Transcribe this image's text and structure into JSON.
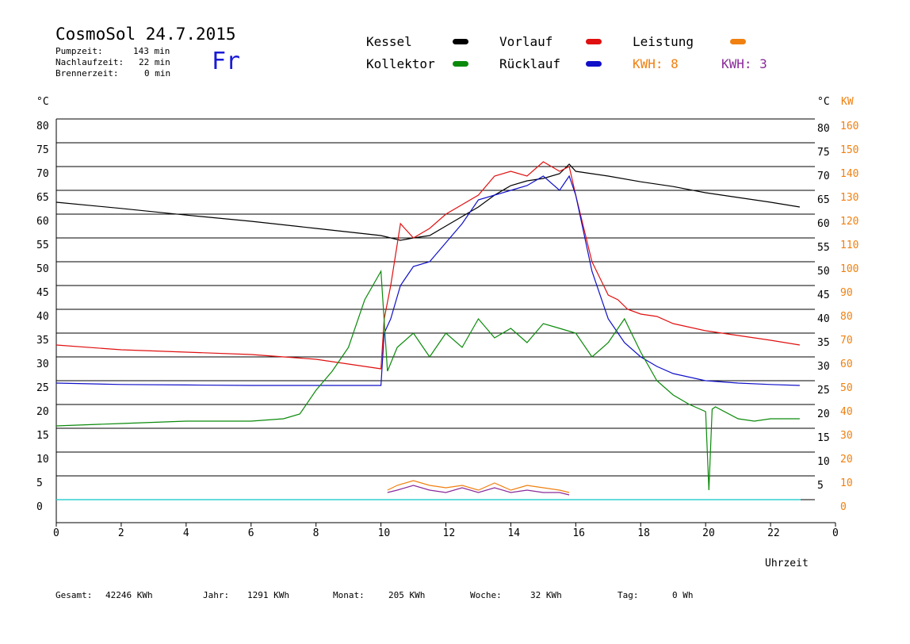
{
  "header": {
    "title": "CosmoSol 24.7.2015",
    "pumpzeit_label": "Pumpzeit:",
    "pumpzeit_value": "143 min",
    "nachlauf_label": "Nachlaufzeit:",
    "nachlauf_value": "22 min",
    "brenner_label": "Brennerzeit:",
    "brenner_value": "0 min",
    "weekday": "Fr"
  },
  "legend": {
    "kessel": "Kessel",
    "vorlauf": "Vorlauf",
    "leistung": "Leistung",
    "kollektor": "Kollektor",
    "ruecklauf": "Rücklauf",
    "kwh1": "KWH: 8",
    "kwh2": "KWH: 3"
  },
  "colors": {
    "kessel": "#000000",
    "vorlauf": "#e01010",
    "ruecklauf": "#1010c8",
    "kollektor": "#0a8a0a",
    "leistung": "#f08010",
    "kwh2": "#8a2a9a",
    "baseline": "#30d0d0",
    "weekday": "#1a1ad6"
  },
  "footer": {
    "gesamt_label": "Gesamt:",
    "gesamt_value": "42246 KWh",
    "jahr_label": "Jahr:",
    "jahr_value": "1291 KWh",
    "monat_label": "Monat:",
    "monat_value": "205 KWh",
    "woche_label": "Woche:",
    "woche_value": "32 KWh",
    "tag_label": "Tag:",
    "tag_value": "0 Wh"
  },
  "chart_data": {
    "type": "line",
    "xlabel": "Uhrzeit",
    "ylabel_left": "°C",
    "ylabel_right_temp": "°C",
    "ylabel_right_power": "KW",
    "xlim": [
      0,
      24
    ],
    "ylim": [
      0,
      80
    ],
    "xticks": [
      "0",
      "2",
      "4",
      "6",
      "8",
      "10",
      "12",
      "14",
      "16",
      "18",
      "20",
      "22",
      "0"
    ],
    "yticks": [
      0,
      5,
      10,
      15,
      20,
      25,
      30,
      35,
      40,
      45,
      50,
      55,
      60,
      65,
      70,
      75,
      80
    ],
    "ytick_labels_left": [
      "0",
      "5",
      "10",
      "15",
      "20",
      "25",
      "30",
      "35",
      "40",
      "45",
      "50",
      "55",
      "60",
      "65",
      "70",
      "75",
      "80"
    ],
    "ytick_labels_right_temp": [
      "5",
      "10",
      "15",
      "20",
      "25",
      "30",
      "35",
      "40",
      "45",
      "50",
      "55",
      "60",
      "65",
      "70",
      "75",
      "80"
    ],
    "ytick_labels_right_power": [
      "0",
      "10",
      "20",
      "30",
      "40",
      "50",
      "60",
      "70",
      "80",
      "90",
      "100",
      "110",
      "120",
      "130",
      "140",
      "150",
      "160"
    ],
    "grid": true,
    "series": [
      {
        "name": "Kessel",
        "color": "#000000",
        "x": [
          0,
          2,
          4,
          6,
          8,
          10,
          10.6,
          11,
          11.5,
          12,
          12.5,
          13,
          13.5,
          14,
          14.5,
          15,
          15.5,
          15.8,
          16,
          17,
          18,
          19,
          20,
          21,
          22,
          22.9
        ],
        "y": [
          62.5,
          61.2,
          59.8,
          58.5,
          57,
          55.5,
          54.5,
          55,
          55.5,
          57.5,
          59.5,
          61.5,
          64,
          66,
          67,
          67.5,
          68.5,
          70.5,
          69,
          68,
          66.8,
          65.8,
          64.5,
          63.5,
          62.5,
          61.5
        ]
      },
      {
        "name": "Vorlauf",
        "color": "#e01010",
        "x": [
          0,
          2,
          4,
          6,
          8,
          9,
          10,
          10.1,
          10.3,
          10.6,
          11,
          11.5,
          12,
          12.5,
          13,
          13.5,
          14,
          14.5,
          15,
          15.5,
          15.8,
          16,
          16.5,
          17,
          17.3,
          17.6,
          18,
          18.5,
          19,
          20,
          21,
          22,
          22.9
        ],
        "y": [
          32.5,
          31.5,
          31,
          30.5,
          29.5,
          28.5,
          27.5,
          38,
          45,
          58,
          55,
          57,
          60,
          62,
          64,
          68,
          69,
          68,
          71,
          69,
          70,
          64,
          50,
          43,
          42,
          40,
          39,
          38.5,
          37,
          35.5,
          34.5,
          33.5,
          32.5
        ]
      },
      {
        "name": "Rücklauf",
        "color": "#1010c8",
        "x": [
          0,
          2,
          4,
          6,
          8,
          10,
          10.1,
          10.3,
          10.6,
          11,
          11.5,
          12,
          12.5,
          13,
          13.5,
          14,
          14.5,
          15,
          15.5,
          15.8,
          16,
          16.5,
          17,
          17.5,
          18,
          18.5,
          19,
          20,
          21,
          22,
          22.9
        ],
        "y": [
          24.5,
          24.2,
          24.1,
          24,
          24,
          24,
          35,
          38,
          45,
          49,
          50,
          54,
          58,
          63,
          64,
          65,
          66,
          68,
          65,
          68,
          64,
          48,
          38,
          33,
          30,
          28,
          26.5,
          25,
          24.5,
          24.2,
          24
        ]
      },
      {
        "name": "Kollektor",
        "color": "#0a8a0a",
        "x": [
          0,
          2,
          4,
          6,
          7,
          7.5,
          8,
          8.5,
          9,
          9.5,
          10,
          10.2,
          10.5,
          11,
          11.5,
          12,
          12.5,
          13,
          13.5,
          14,
          14.5,
          15,
          15.5,
          16,
          16.5,
          17,
          17.5,
          18,
          18.5,
          19,
          19.5,
          20,
          20.1,
          20.2,
          20.3,
          21,
          21.5,
          22,
          22.9
        ],
        "y": [
          15.5,
          16,
          16.5,
          16.5,
          17,
          18,
          23,
          27,
          32,
          42,
          48,
          27,
          32,
          35,
          30,
          35,
          32,
          38,
          34,
          36,
          33,
          37,
          36,
          35,
          30,
          33,
          38,
          31,
          25,
          22,
          20,
          18.5,
          2,
          19,
          19.5,
          17,
          16.5,
          17,
          17
        ]
      },
      {
        "name": "Leistung",
        "color": "#f08010",
        "x": [
          10.2,
          10.5,
          11,
          11.5,
          12,
          12.5,
          13,
          13.5,
          14,
          14.5,
          15,
          15.5,
          15.8
        ],
        "y": [
          2,
          3,
          4,
          3,
          2.5,
          3,
          2,
          3.5,
          2,
          3,
          2.5,
          2,
          1.5
        ]
      },
      {
        "name": "KWH: 3",
        "color": "#8a2a9a",
        "x": [
          10.2,
          10.5,
          11,
          11.5,
          12,
          12.5,
          13,
          13.5,
          14,
          14.5,
          15,
          15.5,
          15.8
        ],
        "y": [
          1.5,
          2,
          3,
          2,
          1.5,
          2.5,
          1.5,
          2.5,
          1.5,
          2,
          1.5,
          1.5,
          1
        ]
      }
    ]
  }
}
